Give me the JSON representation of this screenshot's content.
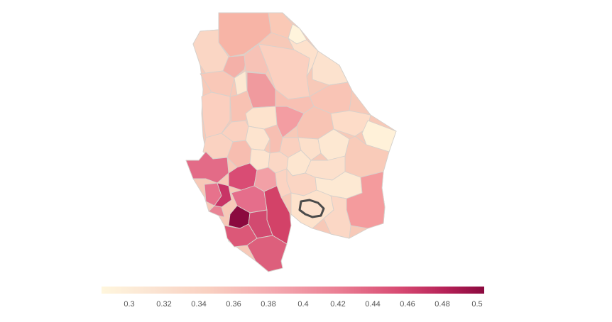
{
  "map": {
    "highlighted_region": "outlined municipality (southeast)"
  },
  "legend": {
    "min": 0.285,
    "max": 0.505,
    "ticks": [
      "0.3",
      "0.32",
      "0.34",
      "0.36",
      "0.38",
      "0.4",
      "0.42",
      "0.44",
      "0.46",
      "0.48",
      "0.5"
    ]
  },
  "colors": {
    "low": "#fff6dd",
    "mid": "#f4aab0",
    "high": "#8b0a3f",
    "border": "#d6d1cc",
    "highlight_border": "#4a4a4a"
  }
}
